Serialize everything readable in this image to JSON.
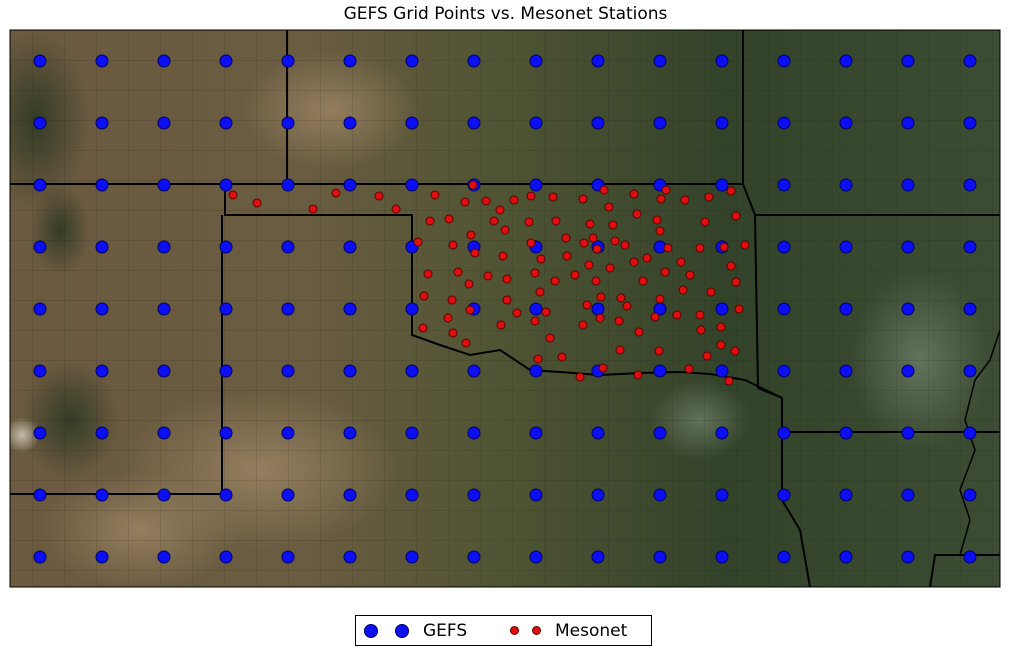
{
  "map": {
    "title": "GEFS Grid Points vs. Mesonet Stations",
    "basemap": "satellite imagery (Texas, Oklahoma, Kansas region) with state and county boundaries",
    "colors": {
      "gefs_fill": "#0b0ff2",
      "gefs_edge": "#000066",
      "mesonet_fill": "#e00f0f",
      "mesonet_edge": "#5a0000",
      "state_border": "#000000",
      "county_border": "#1a1a10"
    },
    "gefs_grid": {
      "rows": 9,
      "cols": 16,
      "description": "regular GEFS grid points covering the map"
    },
    "mesonet_count": 116
  },
  "legend": {
    "items": [
      {
        "label": "GEFS",
        "series": "gefs"
      },
      {
        "label": "Mesonet",
        "series": "mesonet"
      }
    ]
  }
}
